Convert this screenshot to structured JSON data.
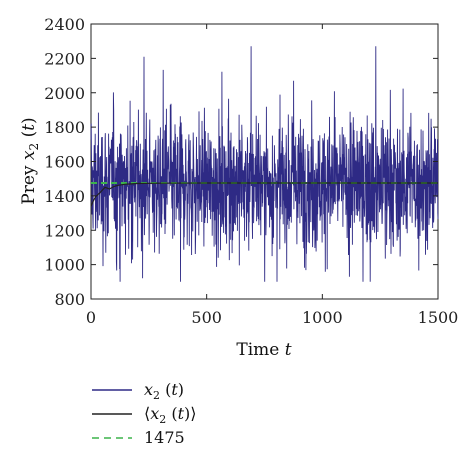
{
  "chart_data": {
    "type": "line",
    "title": "",
    "xlabel": "Time t",
    "ylabel": "Prey x2 (t)",
    "xlim": [
      0,
      1500
    ],
    "ylim": [
      800,
      2400
    ],
    "xticks": [
      "0",
      "500",
      "1000",
      "1500"
    ],
    "yticks": [
      "800",
      "1000",
      "1200",
      "1400",
      "1600",
      "1800",
      "2000",
      "2200",
      "2400"
    ],
    "grid": false,
    "legend_position": "below",
    "series": [
      {
        "name": "x2 (t)",
        "color": "#2e2a85",
        "style": "solid",
        "x_range": [
          0,
          1500
        ],
        "approx_mean": 1475,
        "approx_min": 900,
        "approx_max": 2270,
        "note": "noisy fluctuating series"
      },
      {
        "name": "⟨x2 (t)⟩",
        "color": "#222222",
        "style": "solid",
        "x": [
          0,
          10,
          20,
          40,
          60,
          80,
          100,
          120,
          150,
          200,
          300,
          500,
          1000,
          1500
        ],
        "y": [
          1340,
          1370,
          1395,
          1420,
          1450,
          1440,
          1455,
          1462,
          1468,
          1472,
          1474,
          1475,
          1475,
          1475
        ]
      },
      {
        "name": "1475",
        "color": "#3cb34a",
        "style": "dashed",
        "x": [
          0,
          1500
        ],
        "y": [
          1475,
          1475
        ]
      }
    ]
  }
}
